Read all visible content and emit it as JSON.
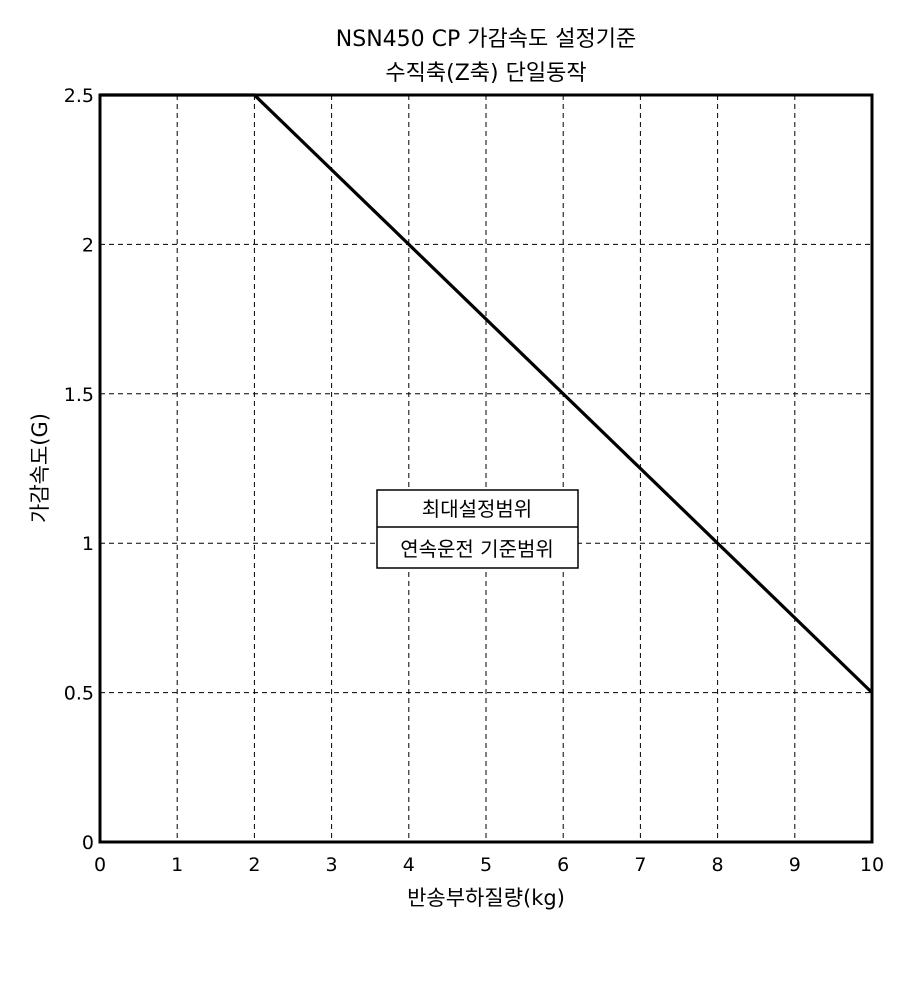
{
  "chart_data": {
    "type": "line",
    "title": "NSN450 CP 가감속도 설정기준",
    "subtitle": "수직축(Z축) 단일동작",
    "xlabel": "반송부하질량(kg)",
    "ylabel": "가감속도(G)",
    "xlim": [
      0,
      10
    ],
    "ylim": [
      0,
      2.5
    ],
    "x_ticks": [
      0,
      1,
      2,
      3,
      4,
      5,
      6,
      7,
      8,
      9,
      10
    ],
    "x_tick_labels": [
      "0",
      "1",
      "2",
      "3",
      "4",
      "5",
      "6",
      "7",
      "8",
      "9",
      "10"
    ],
    "y_ticks": [
      0,
      0.5,
      1,
      1.5,
      2,
      2.5
    ],
    "y_tick_labels": [
      "0",
      "0.5",
      "1",
      "1.5",
      "2",
      "2.5"
    ],
    "grid": true,
    "series": [
      {
        "x": [
          0,
          2,
          10
        ],
        "y": [
          2.5,
          2.5,
          0.5
        ]
      }
    ],
    "annotations": {
      "upper": "최대설정범위",
      "lower": "연속운전 기준범위"
    }
  }
}
